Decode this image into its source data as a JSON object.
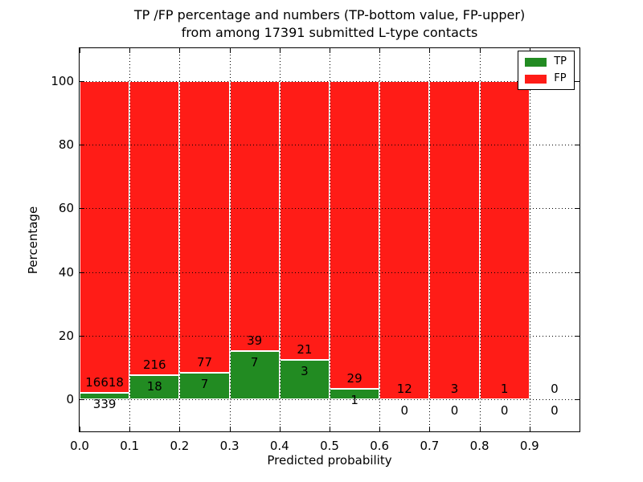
{
  "title": {
    "line1": "TP /FP percentage and numbers (TP-bottom value, FP-upper)",
    "line2": "from among 17391 submitted L-type contacts"
  },
  "chart_data": {
    "type": "bar",
    "stacked": true,
    "normalized_to_percent": true,
    "title": "TP /FP percentage and numbers (TP-bottom value, FP-upper) from among 17391 submitted L-type contacts",
    "total_contacts": 17391,
    "categories": [
      "0.0-0.1",
      "0.1-0.2",
      "0.2-0.3",
      "0.3-0.4",
      "0.4-0.5",
      "0.5-0.6",
      "0.6-0.7",
      "0.7-0.8",
      "0.8-0.9",
      "0.9-1.0"
    ],
    "series": [
      {
        "name": "TP",
        "color": "#228b22",
        "counts": [
          339,
          18,
          7,
          7,
          3,
          1,
          0,
          0,
          0,
          0
        ]
      },
      {
        "name": "FP",
        "color": "#ff1c17",
        "counts": [
          16618,
          216,
          77,
          39,
          21,
          29,
          12,
          3,
          1,
          0
        ]
      }
    ],
    "tp_percent_of_bin": [
      2.0,
      7.7,
      8.3,
      15.2,
      12.5,
      3.3,
      0.0,
      0.0,
      0.0,
      0.0
    ],
    "xlabel": "Predicted probability",
    "ylabel": "Percentage",
    "xticks": [
      "0.0",
      "0.1",
      "0.2",
      "0.3",
      "0.4",
      "0.5",
      "0.6",
      "0.7",
      "0.8",
      "0.9"
    ],
    "yticks": [
      "0",
      "20",
      "40",
      "60",
      "80",
      "100"
    ],
    "xlim": [
      0.0,
      1.0
    ],
    "ylim": [
      -10,
      110
    ],
    "grid": "dotted, drawn above bars",
    "legend_position": "upper right"
  }
}
